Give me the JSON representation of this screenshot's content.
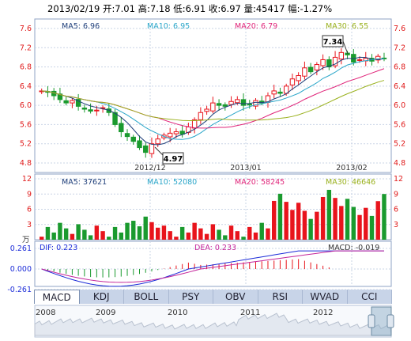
{
  "header": {
    "text": "2013/02/19 开:7.01 高:7.18 低:6.91 收:6.97 量:45417 幅:-1.27%"
  },
  "price_panel": {
    "ma_labels": [
      {
        "label": "MA5: 6.96",
        "color": "#1f3f7a"
      },
      {
        "label": "MA10: 6.95",
        "color": "#2aa6c9"
      },
      {
        "label": "MA20: 6.79",
        "color": "#e0257a"
      },
      {
        "label": "MA30: 6.55",
        "color": "#9ab11e"
      }
    ],
    "y_ticks": [
      "7.6",
      "7.2",
      "6.8",
      "6.4",
      "6.0",
      "5.6",
      "5.2",
      "4.8"
    ],
    "x_labels": [
      "2012/12",
      "2013/01",
      "2013/02"
    ],
    "high_marker": "7.34",
    "low_marker": "4.97"
  },
  "volume_panel": {
    "ma_labels": [
      {
        "label": "MA5: 37621",
        "color": "#1f3f7a"
      },
      {
        "label": "MA10: 52080",
        "color": "#2aa6c9"
      },
      {
        "label": "MA20: 58245",
        "color": "#e0257a"
      },
      {
        "label": "MA30: 46646",
        "color": "#9ab11e"
      }
    ],
    "y_ticks": [
      "12",
      "9",
      "6",
      "3"
    ],
    "unit": "万"
  },
  "macd_panel": {
    "dif": "DIF: 0.223",
    "dea": "DEA: 0.233",
    "macd": "MACD: -0.019",
    "y_ticks": [
      "0.261",
      "0.000",
      "-0.261"
    ]
  },
  "tabs": [
    "MACD",
    "KDJ",
    "BOLL",
    "PSY",
    "OBV",
    "RSI",
    "WVAD",
    "CCI"
  ],
  "navigator": {
    "years": [
      "2008",
      "2009",
      "2010",
      "2011",
      "2012"
    ]
  },
  "colors": {
    "up": "#e8141c",
    "down": "#1a9a2e",
    "grid": "#c9d4e6",
    "ma5": "#1f3f7a",
    "ma10": "#2aa6c9",
    "ma20": "#e0257a",
    "ma30": "#9ab11e"
  },
  "chart_data": {
    "type": "candlestick",
    "title": "",
    "x_labels": [
      "2012/12",
      "2013/01",
      "2013/02"
    ],
    "y_range": [
      4.8,
      7.6
    ],
    "last_bar": {
      "date": "2013/02/19",
      "open": 7.01,
      "high": 7.18,
      "low": 6.91,
      "close": 6.97,
      "volume": 45417,
      "change_pct": -1.27
    },
    "annotations": [
      {
        "text": "7.34",
        "kind": "period-high"
      },
      {
        "text": "4.97",
        "kind": "period-low"
      }
    ]
  }
}
